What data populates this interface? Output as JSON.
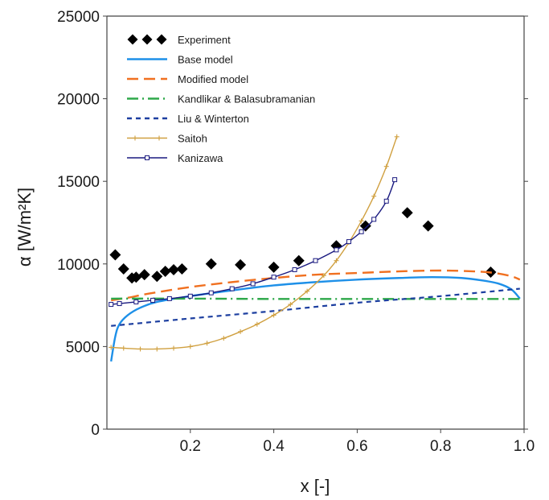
{
  "chart_data": {
    "type": "line",
    "xlabel": "x [-]",
    "ylabel": "α [W/m²K]",
    "xlim": [
      0,
      1.0
    ],
    "ylim": [
      0,
      25000
    ],
    "x_ticks": [
      0.2,
      0.4,
      0.6,
      0.8,
      1.0
    ],
    "x_tick_labels": [
      "0.2",
      "0.4",
      "0.6",
      "0.8",
      "1.0"
    ],
    "y_ticks": [
      0,
      5000,
      10000,
      15000,
      20000,
      25000
    ],
    "y_tick_labels": [
      "0",
      "5000",
      "10000",
      "15000",
      "20000",
      "25000"
    ],
    "grid": false,
    "legend_position": "top-left",
    "series": [
      {
        "name": "Experiment",
        "kind": "markers",
        "color": "#000000",
        "x": [
          0.02,
          0.04,
          0.06,
          0.07,
          0.09,
          0.12,
          0.14,
          0.16,
          0.18,
          0.25,
          0.32,
          0.4,
          0.46,
          0.55,
          0.62,
          0.72,
          0.77,
          0.92
        ],
        "y": [
          10550,
          9700,
          9150,
          9200,
          9350,
          9250,
          9550,
          9650,
          9700,
          10000,
          9950,
          9800,
          10200,
          11100,
          12300,
          13100,
          12300,
          9500
        ]
      },
      {
        "name": "Base model",
        "kind": "solid",
        "color": "#1e90e8",
        "x": [
          0.01,
          0.02,
          0.03,
          0.05,
          0.08,
          0.12,
          0.2,
          0.3,
          0.4,
          0.5,
          0.6,
          0.7,
          0.78,
          0.85,
          0.9,
          0.94,
          0.97,
          0.99
        ],
        "y": [
          4100,
          5600,
          6350,
          6900,
          7350,
          7700,
          8050,
          8400,
          8700,
          8900,
          9050,
          9150,
          9200,
          9150,
          9000,
          8800,
          8450,
          7900
        ]
      },
      {
        "name": "Modified model",
        "kind": "dashed",
        "color": "#f07020",
        "x": [
          0.01,
          0.05,
          0.1,
          0.2,
          0.3,
          0.4,
          0.5,
          0.6,
          0.7,
          0.8,
          0.88,
          0.93,
          0.97,
          0.99
        ],
        "y": [
          7800,
          7950,
          8200,
          8600,
          8900,
          9150,
          9350,
          9450,
          9550,
          9600,
          9550,
          9450,
          9250,
          9050
        ]
      },
      {
        "name": "Kandlikar & Balasubramanian",
        "kind": "dashdot",
        "color": "#2ea84a",
        "x": [
          0.01,
          0.2,
          0.4,
          0.6,
          0.8,
          0.99
        ],
        "y": [
          7900,
          7900,
          7880,
          7880,
          7880,
          7880
        ]
      },
      {
        "name": "Liu & Winterton",
        "kind": "dotted",
        "color": "#1d3fa0",
        "x": [
          0.01,
          0.2,
          0.4,
          0.6,
          0.8,
          0.99
        ],
        "y": [
          6250,
          6700,
          7150,
          7650,
          8050,
          8500
        ]
      },
      {
        "name": "Saitoh",
        "kind": "line-plus",
        "color": "#d0a040",
        "x": [
          0.01,
          0.04,
          0.08,
          0.12,
          0.16,
          0.2,
          0.24,
          0.28,
          0.32,
          0.36,
          0.4,
          0.44,
          0.48,
          0.52,
          0.55,
          0.58,
          0.61,
          0.64,
          0.67,
          0.695
        ],
        "y": [
          4950,
          4900,
          4850,
          4850,
          4900,
          5000,
          5200,
          5500,
          5900,
          6350,
          6900,
          7550,
          8350,
          9300,
          10200,
          11300,
          12600,
          14100,
          15900,
          17700
        ]
      },
      {
        "name": "Kanizawa",
        "kind": "line-square",
        "color": "#1a1a80",
        "x": [
          0.01,
          0.03,
          0.07,
          0.11,
          0.15,
          0.2,
          0.25,
          0.3,
          0.35,
          0.4,
          0.45,
          0.5,
          0.55,
          0.58,
          0.61,
          0.64,
          0.67,
          0.69
        ],
        "y": [
          7550,
          7600,
          7700,
          7800,
          7900,
          8050,
          8250,
          8500,
          8800,
          9200,
          9650,
          10200,
          10850,
          11350,
          11950,
          12700,
          13800,
          15100
        ]
      }
    ]
  }
}
